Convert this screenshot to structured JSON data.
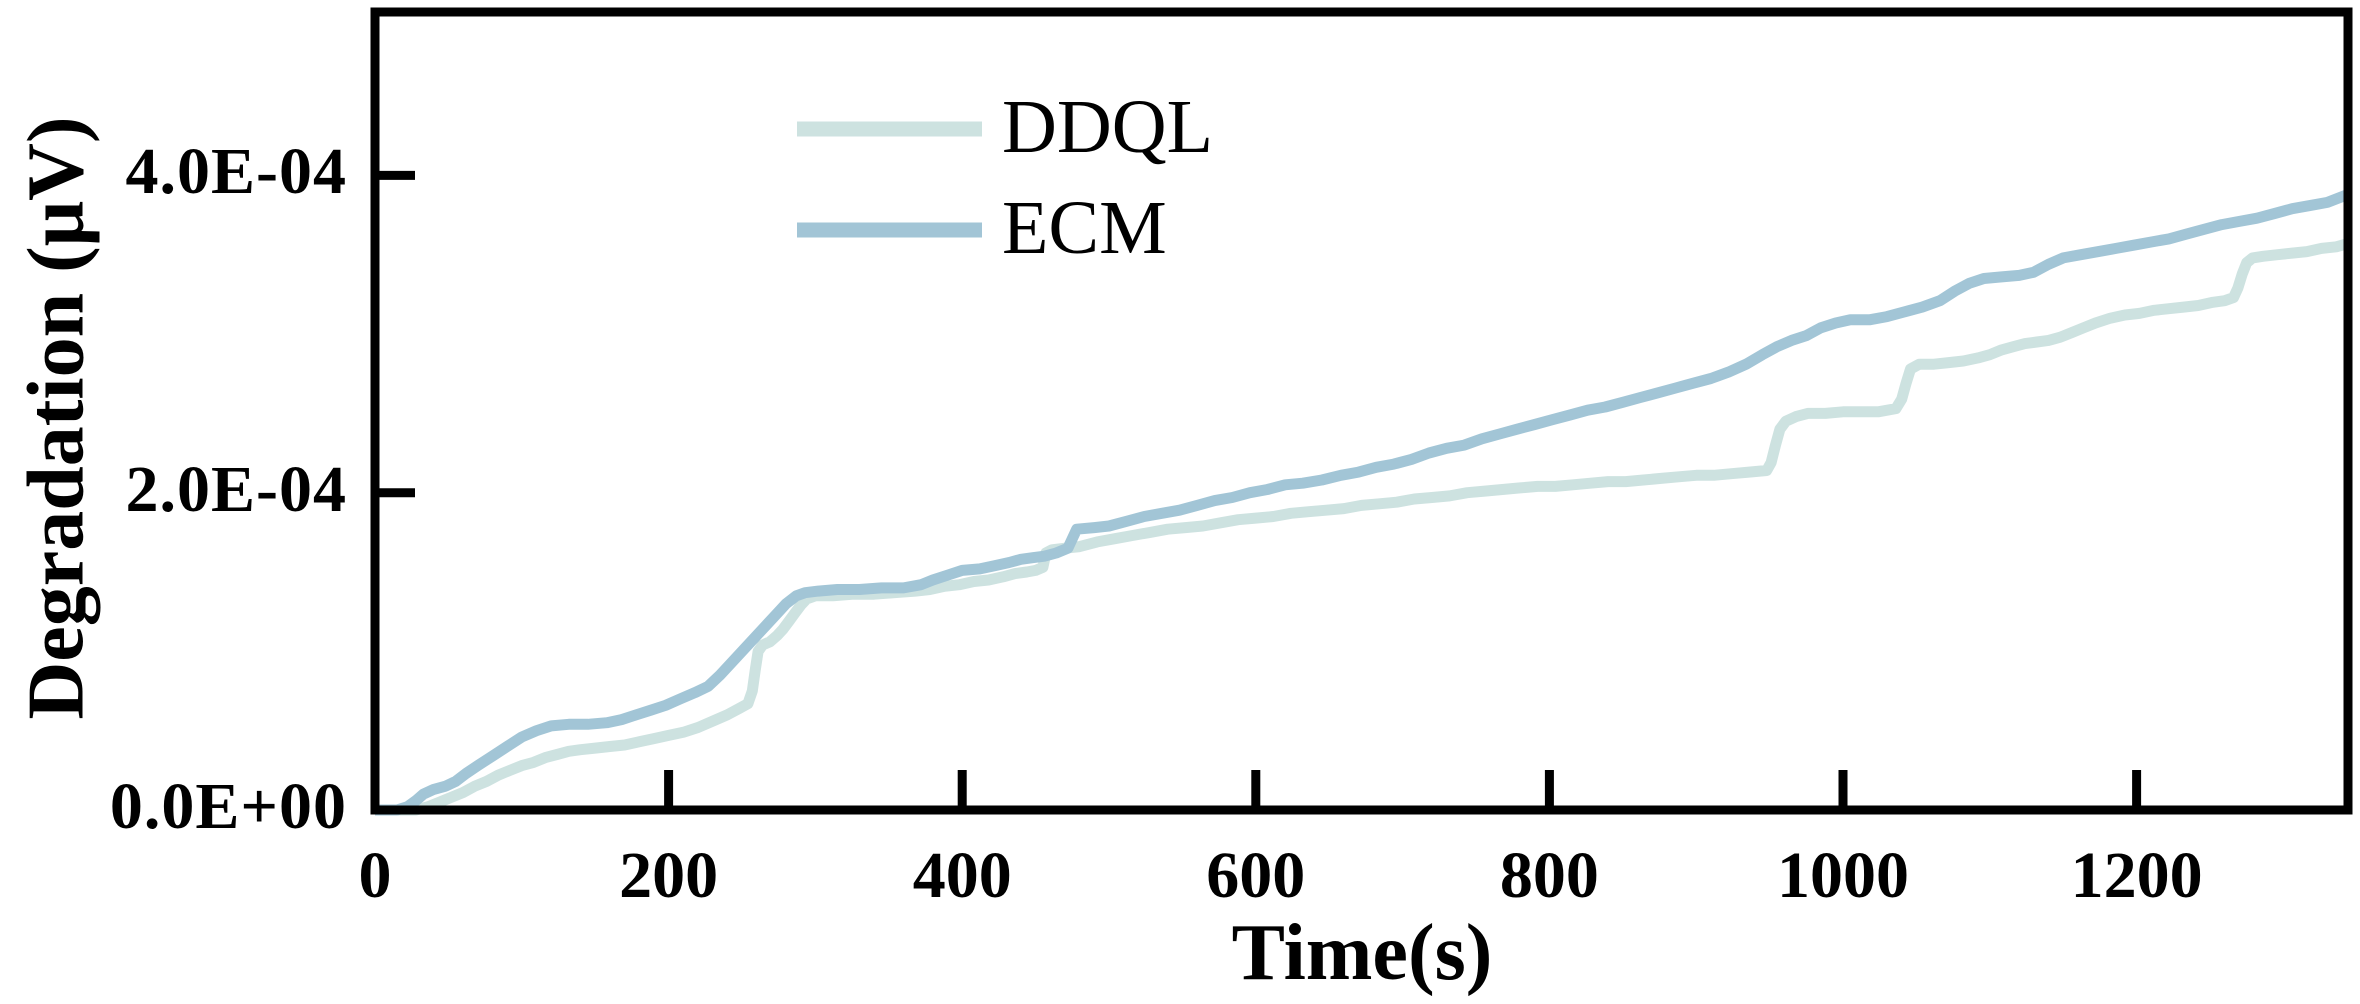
{
  "chart_data": {
    "type": "line",
    "title": "",
    "xlabel": "Time(s)",
    "ylabel": "Degradation (μV)",
    "xlim": [
      0,
      1344
    ],
    "ylim": [
      0,
      503
    ],
    "y_value_unit": "1e-6",
    "grid": false,
    "legend_position": "upper-left-inside",
    "xticks": [
      {
        "value": 0,
        "label": "0"
      },
      {
        "value": 200,
        "label": "200"
      },
      {
        "value": 400,
        "label": "400"
      },
      {
        "value": 600,
        "label": "600"
      },
      {
        "value": 800,
        "label": "800"
      },
      {
        "value": 1000,
        "label": "1000"
      },
      {
        "value": 1200,
        "label": "1200"
      }
    ],
    "yticks": [
      {
        "value": 0,
        "label": "0.0E+00"
      },
      {
        "value": 200,
        "label": "2.0E-04"
      },
      {
        "value": 400,
        "label": "4.0E-04"
      }
    ],
    "axis_color": "#000000",
    "series": [
      {
        "name": "DDQL",
        "color": "#cde2e0",
        "points": [
          [
            0,
            0
          ],
          [
            28,
            0
          ],
          [
            36,
            2
          ],
          [
            44,
            5
          ],
          [
            52,
            8
          ],
          [
            60,
            11
          ],
          [
            68,
            15
          ],
          [
            76,
            18
          ],
          [
            84,
            22
          ],
          [
            92,
            25
          ],
          [
            100,
            28
          ],
          [
            108,
            30
          ],
          [
            116,
            33
          ],
          [
            124,
            35
          ],
          [
            132,
            37
          ],
          [
            140,
            38
          ],
          [
            150,
            39
          ],
          [
            160,
            40
          ],
          [
            170,
            41
          ],
          [
            180,
            43
          ],
          [
            190,
            45
          ],
          [
            200,
            47
          ],
          [
            210,
            49
          ],
          [
            220,
            52
          ],
          [
            230,
            56
          ],
          [
            240,
            60
          ],
          [
            248,
            64
          ],
          [
            254,
            67
          ],
          [
            257,
            75
          ],
          [
            259,
            88
          ],
          [
            261,
            100
          ],
          [
            264,
            104
          ],
          [
            269,
            106
          ],
          [
            274,
            110
          ],
          [
            278,
            114
          ],
          [
            282,
            119
          ],
          [
            286,
            124
          ],
          [
            290,
            129
          ],
          [
            294,
            133
          ],
          [
            300,
            135
          ],
          [
            312,
            135
          ],
          [
            326,
            136
          ],
          [
            340,
            136
          ],
          [
            354,
            137
          ],
          [
            368,
            138
          ],
          [
            378,
            139
          ],
          [
            388,
            141
          ],
          [
            398,
            142
          ],
          [
            408,
            144
          ],
          [
            418,
            145
          ],
          [
            428,
            147
          ],
          [
            436,
            149
          ],
          [
            444,
            150
          ],
          [
            450,
            151
          ],
          [
            455,
            153
          ],
          [
            457,
            162
          ],
          [
            461,
            164
          ],
          [
            470,
            165
          ],
          [
            480,
            166
          ],
          [
            492,
            169
          ],
          [
            504,
            171
          ],
          [
            516,
            173
          ],
          [
            528,
            175
          ],
          [
            540,
            177
          ],
          [
            552,
            178
          ],
          [
            564,
            179
          ],
          [
            576,
            181
          ],
          [
            588,
            183
          ],
          [
            600,
            184
          ],
          [
            612,
            185
          ],
          [
            624,
            187
          ],
          [
            636,
            188
          ],
          [
            648,
            189
          ],
          [
            660,
            190
          ],
          [
            672,
            192
          ],
          [
            684,
            193
          ],
          [
            696,
            194
          ],
          [
            708,
            196
          ],
          [
            720,
            197
          ],
          [
            732,
            198
          ],
          [
            744,
            200
          ],
          [
            756,
            201
          ],
          [
            768,
            202
          ],
          [
            780,
            203
          ],
          [
            792,
            204
          ],
          [
            804,
            204
          ],
          [
            816,
            205
          ],
          [
            828,
            206
          ],
          [
            840,
            207
          ],
          [
            852,
            207
          ],
          [
            864,
            208
          ],
          [
            876,
            209
          ],
          [
            888,
            210
          ],
          [
            900,
            211
          ],
          [
            912,
            211
          ],
          [
            924,
            212
          ],
          [
            936,
            213
          ],
          [
            948,
            214
          ],
          [
            951,
            219
          ],
          [
            954,
            230
          ],
          [
            957,
            240
          ],
          [
            961,
            245
          ],
          [
            968,
            248
          ],
          [
            976,
            250
          ],
          [
            988,
            250
          ],
          [
            1000,
            251
          ],
          [
            1012,
            251
          ],
          [
            1024,
            251
          ],
          [
            1036,
            253
          ],
          [
            1040,
            259
          ],
          [
            1043,
            269
          ],
          [
            1046,
            278
          ],
          [
            1052,
            281
          ],
          [
            1062,
            281
          ],
          [
            1072,
            282
          ],
          [
            1082,
            283
          ],
          [
            1092,
            285
          ],
          [
            1100,
            287
          ],
          [
            1108,
            290
          ],
          [
            1116,
            292
          ],
          [
            1124,
            294
          ],
          [
            1132,
            295
          ],
          [
            1140,
            296
          ],
          [
            1148,
            298
          ],
          [
            1156,
            301
          ],
          [
            1164,
            304
          ],
          [
            1172,
            307
          ],
          [
            1182,
            310
          ],
          [
            1192,
            312
          ],
          [
            1202,
            313
          ],
          [
            1212,
            315
          ],
          [
            1222,
            316
          ],
          [
            1232,
            317
          ],
          [
            1242,
            318
          ],
          [
            1252,
            320
          ],
          [
            1260,
            321
          ],
          [
            1266,
            323
          ],
          [
            1269,
            329
          ],
          [
            1272,
            338
          ],
          [
            1275,
            345
          ],
          [
            1279,
            348
          ],
          [
            1286,
            349
          ],
          [
            1296,
            350
          ],
          [
            1306,
            351
          ],
          [
            1316,
            352
          ],
          [
            1326,
            354
          ],
          [
            1336,
            355
          ],
          [
            1344,
            357
          ]
        ]
      },
      {
        "name": "ECM",
        "color": "#a2c5d6",
        "points": [
          [
            0,
            0
          ],
          [
            15,
            0
          ],
          [
            22,
            2
          ],
          [
            28,
            6
          ],
          [
            33,
            10
          ],
          [
            40,
            13
          ],
          [
            48,
            15
          ],
          [
            55,
            18
          ],
          [
            62,
            23
          ],
          [
            70,
            28
          ],
          [
            80,
            34
          ],
          [
            90,
            40
          ],
          [
            100,
            46
          ],
          [
            110,
            50
          ],
          [
            120,
            53
          ],
          [
            132,
            54
          ],
          [
            145,
            54
          ],
          [
            158,
            55
          ],
          [
            168,
            57
          ],
          [
            178,
            60
          ],
          [
            188,
            63
          ],
          [
            198,
            66
          ],
          [
            208,
            70
          ],
          [
            218,
            74
          ],
          [
            227,
            78
          ],
          [
            235,
            85
          ],
          [
            243,
            93
          ],
          [
            251,
            101
          ],
          [
            259,
            109
          ],
          [
            266,
            116
          ],
          [
            273,
            123
          ],
          [
            280,
            130
          ],
          [
            287,
            135
          ],
          [
            293,
            137
          ],
          [
            302,
            138
          ],
          [
            315,
            139
          ],
          [
            330,
            139
          ],
          [
            345,
            140
          ],
          [
            360,
            140
          ],
          [
            372,
            142
          ],
          [
            380,
            145
          ],
          [
            390,
            148
          ],
          [
            400,
            151
          ],
          [
            412,
            152
          ],
          [
            422,
            154
          ],
          [
            432,
            156
          ],
          [
            440,
            158
          ],
          [
            448,
            159
          ],
          [
            456,
            160
          ],
          [
            464,
            162
          ],
          [
            472,
            165
          ],
          [
            478,
            177
          ],
          [
            490,
            178
          ],
          [
            500,
            179
          ],
          [
            512,
            182
          ],
          [
            524,
            185
          ],
          [
            536,
            187
          ],
          [
            548,
            189
          ],
          [
            560,
            192
          ],
          [
            572,
            195
          ],
          [
            584,
            197
          ],
          [
            596,
            200
          ],
          [
            608,
            202
          ],
          [
            620,
            205
          ],
          [
            632,
            206
          ],
          [
            645,
            208
          ],
          [
            658,
            211
          ],
          [
            670,
            213
          ],
          [
            682,
            216
          ],
          [
            694,
            218
          ],
          [
            706,
            221
          ],
          [
            718,
            225
          ],
          [
            730,
            228
          ],
          [
            742,
            230
          ],
          [
            754,
            234
          ],
          [
            766,
            237
          ],
          [
            778,
            240
          ],
          [
            790,
            243
          ],
          [
            802,
            246
          ],
          [
            814,
            249
          ],
          [
            826,
            252
          ],
          [
            838,
            254
          ],
          [
            850,
            257
          ],
          [
            862,
            260
          ],
          [
            874,
            263
          ],
          [
            886,
            266
          ],
          [
            898,
            269
          ],
          [
            910,
            272
          ],
          [
            922,
            276
          ],
          [
            934,
            281
          ],
          [
            945,
            287
          ],
          [
            955,
            292
          ],
          [
            965,
            296
          ],
          [
            975,
            299
          ],
          [
            985,
            304
          ],
          [
            995,
            307
          ],
          [
            1005,
            309
          ],
          [
            1018,
            309
          ],
          [
            1030,
            311
          ],
          [
            1042,
            314
          ],
          [
            1054,
            317
          ],
          [
            1066,
            321
          ],
          [
            1076,
            327
          ],
          [
            1086,
            332
          ],
          [
            1096,
            335
          ],
          [
            1108,
            336
          ],
          [
            1120,
            337
          ],
          [
            1130,
            339
          ],
          [
            1140,
            344
          ],
          [
            1150,
            348
          ],
          [
            1162,
            350
          ],
          [
            1174,
            352
          ],
          [
            1186,
            354
          ],
          [
            1198,
            356
          ],
          [
            1210,
            358
          ],
          [
            1222,
            360
          ],
          [
            1234,
            363
          ],
          [
            1246,
            366
          ],
          [
            1258,
            369
          ],
          [
            1270,
            371
          ],
          [
            1282,
            373
          ],
          [
            1294,
            376
          ],
          [
            1306,
            379
          ],
          [
            1318,
            381
          ],
          [
            1330,
            383
          ],
          [
            1344,
            388
          ]
        ]
      }
    ]
  }
}
